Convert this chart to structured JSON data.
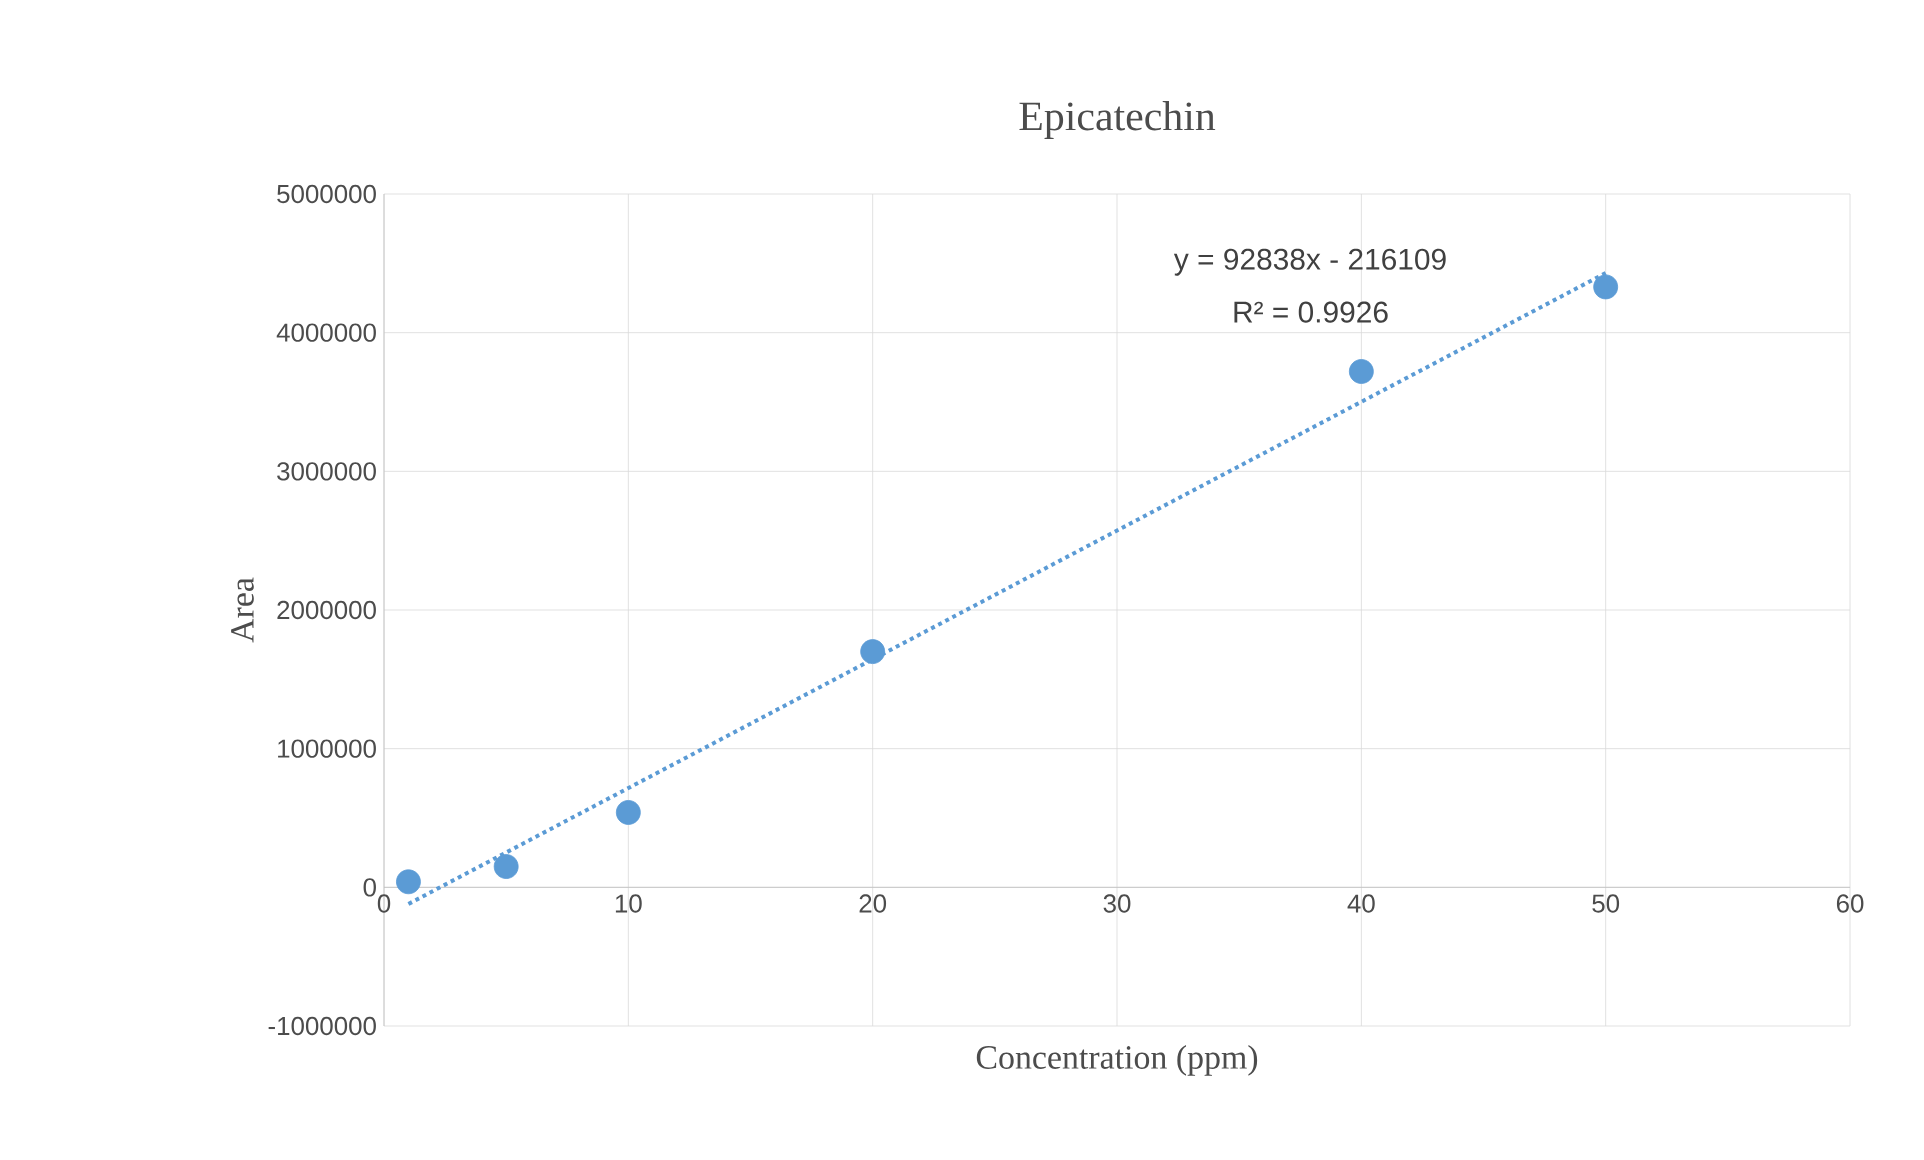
{
  "chart_data": {
    "type": "scatter",
    "title": "Epicatechin",
    "xlabel": "Concentration (ppm)",
    "ylabel": "Area",
    "xlim": [
      0,
      60
    ],
    "xticks": [
      0,
      10,
      20,
      30,
      40,
      50,
      60
    ],
    "ylim": [
      -1000000,
      5000000
    ],
    "yticks": [
      -1000000,
      0,
      1000000,
      2000000,
      3000000,
      4000000,
      5000000
    ],
    "grid": true,
    "annotations": [
      "y = 92838x - 216109",
      "R² = 0.9926"
    ],
    "series": [
      {
        "marker": "circle",
        "color": "#5b9bd5",
        "x": [
          1,
          5,
          10,
          20,
          40,
          50
        ],
        "values": [
          40000,
          150000,
          540000,
          1700000,
          3720000,
          4330000
        ]
      },
      {
        "type": "line",
        "line_style": "dotted",
        "color": "#5b9bd5",
        "x": [
          1,
          50
        ],
        "values": [
          -120000,
          4430000
        ]
      }
    ]
  }
}
